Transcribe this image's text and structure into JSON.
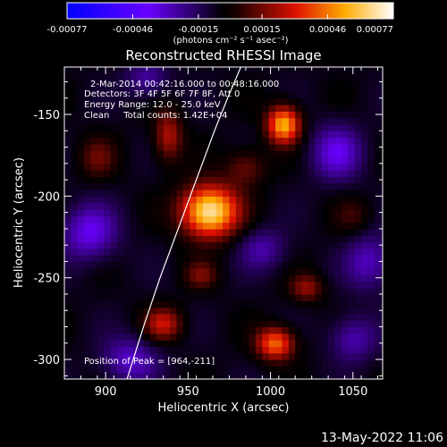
{
  "chart_data": {
    "type": "heatmap",
    "title": "Reconstructed RHESSI Image",
    "xlabel": "Heliocentric X (arcsec)",
    "ylabel": "Heliocentric Y (arcsec)",
    "xlim": [
      875,
      1068
    ],
    "ylim": [
      -312,
      -121
    ],
    "x_ticks": [
      900,
      950,
      1000,
      1050
    ],
    "y_ticks": [
      -150,
      -200,
      -250,
      -300
    ],
    "colorbar": {
      "range": [
        -0.00077,
        0.00077
      ],
      "tick_values": [
        -0.00077,
        -0.00046,
        -0.00015,
        0.00015,
        0.00046,
        0.00077
      ],
      "tick_labels": [
        "-0.00077",
        "-0.00046",
        "-0.00015",
        "0.00015",
        "0.00046",
        "0.00077"
      ],
      "units": "(photons cm⁻² s⁻¹ asec⁻²)"
    },
    "annotations": {
      "time_range": "2-Mar-2014 00:42:16.000 to 00:48:16.000",
      "detectors": "Detectors: 3F 4F 5F 6F 7F 8F, Att 0",
      "energy": "Energy Range: 12.0 - 25.0 keV",
      "method": "Clean     Total counts: 1.42E+04",
      "peak": "Position of Peak = [964,-211]"
    },
    "sources": [
      {
        "x": 963,
        "y": -209,
        "peak": 0.00077,
        "sx": 12,
        "sy": 11
      },
      {
        "x": 1008,
        "y": -156,
        "peak": 0.00062,
        "sx": 7,
        "sy": 8
      },
      {
        "x": 1003,
        "y": -290,
        "peak": 0.0005,
        "sx": 8,
        "sy": 7
      },
      {
        "x": 938,
        "y": -163,
        "peak": 0.0003,
        "sx": 6,
        "sy": 11
      },
      {
        "x": 935,
        "y": -278,
        "peak": 0.00033,
        "sx": 8,
        "sy": 7
      },
      {
        "x": 985,
        "y": -182,
        "peak": 0.0002,
        "sx": 9,
        "sy": 8
      },
      {
        "x": 1022,
        "y": -256,
        "peak": 0.00025,
        "sx": 7,
        "sy": 6
      },
      {
        "x": 1050,
        "y": -212,
        "peak": 0.00012,
        "sx": 8,
        "sy": 8
      },
      {
        "x": 895,
        "y": -176,
        "peak": 0.00018,
        "sx": 8,
        "sy": 9
      },
      {
        "x": 958,
        "y": -248,
        "peak": 0.0002,
        "sx": 7,
        "sy": 6
      },
      {
        "x": 890,
        "y": -222,
        "peak": -0.0003,
        "sx": 12,
        "sy": 12
      },
      {
        "x": 1040,
        "y": -173,
        "peak": -0.00028,
        "sx": 11,
        "sy": 12
      },
      {
        "x": 915,
        "y": -300,
        "peak": -0.00025,
        "sx": 12,
        "sy": 10
      },
      {
        "x": 995,
        "y": -232,
        "peak": -0.0002,
        "sx": 10,
        "sy": 9
      },
      {
        "x": 1050,
        "y": -287,
        "peak": -0.00022,
        "sx": 10,
        "sy": 10
      },
      {
        "x": 925,
        "y": -128,
        "peak": -0.0002,
        "sx": 9,
        "sy": 8
      },
      {
        "x": 1060,
        "y": -240,
        "peak": -0.00024,
        "sx": 10,
        "sy": 12
      }
    ],
    "limb_curve": [
      {
        "x": 913,
        "y": -312
      },
      {
        "x": 923,
        "y": -280
      },
      {
        "x": 933,
        "y": -250
      },
      {
        "x": 944,
        "y": -220
      },
      {
        "x": 955,
        "y": -190
      },
      {
        "x": 966,
        "y": -160
      },
      {
        "x": 974,
        "y": -140
      },
      {
        "x": 982,
        "y": -121
      }
    ]
  },
  "footer": {
    "date": "13-May-2022 11:06"
  }
}
